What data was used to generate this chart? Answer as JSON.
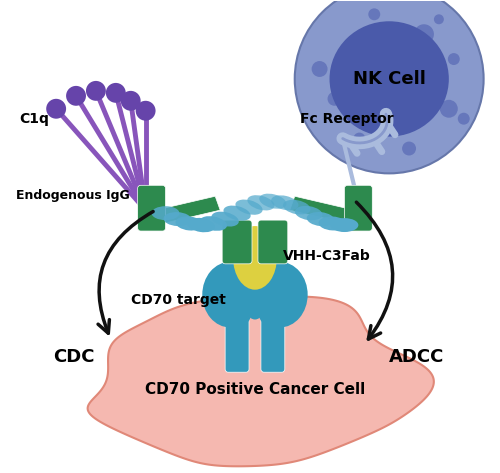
{
  "bg_color": "#ffffff",
  "nk_outer_color": "#8899cc",
  "nk_inner_color": "#4a5aaa",
  "nk_dot_color": "#6677bb",
  "cancer_color": "#f5b8b0",
  "cancer_stroke": "#e08878",
  "vhh_color": "#ddd040",
  "cd70_color": "#3399bb",
  "ab_green": "#2d8a4e",
  "ab_blue": "#55aacc",
  "c1q_stem_color": "#8855bb",
  "c1q_head_color": "#6644aa",
  "fc_receptor_color": "#aabbdd",
  "arrow_color": "#111111",
  "text_color": "#000000",
  "labels": {
    "c1q": "C1q",
    "endogenous": "Endogenous IgG",
    "fc_receptor": "Fc Receptor",
    "vhh": "VHH-C3Fab",
    "cd70": "CD70 target",
    "cdc": "CDC",
    "adcc": "ADCC",
    "nk": "NK Cell",
    "cancer": "CD70 Positive Cancer Cell"
  }
}
